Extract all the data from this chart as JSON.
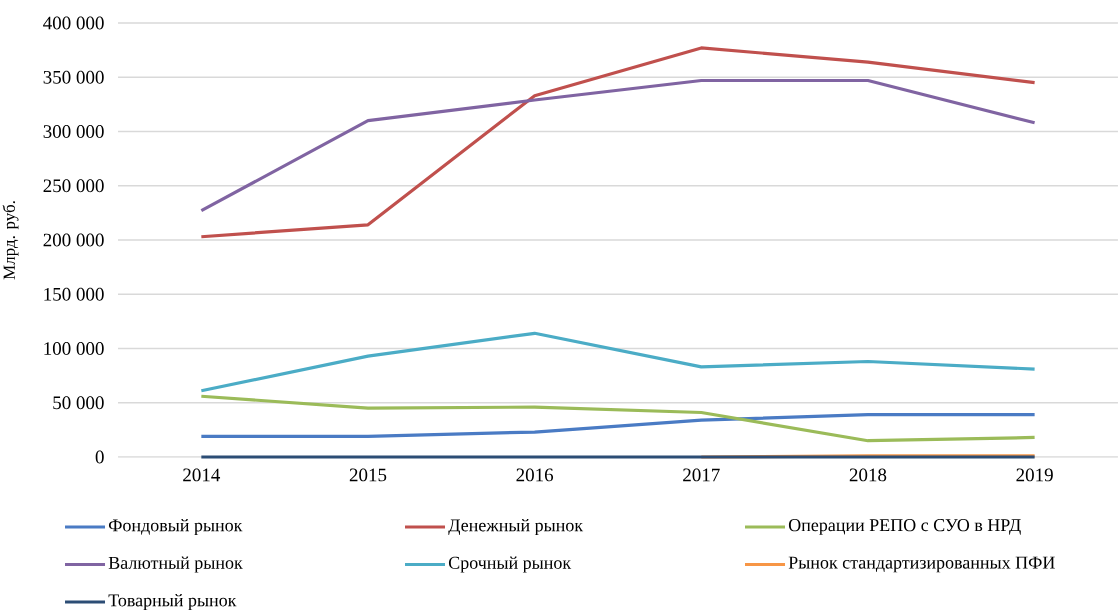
{
  "chart_data": {
    "type": "line",
    "ylabel": "Млрд. руб.",
    "categories": [
      "2014",
      "2015",
      "2016",
      "2017",
      "2018",
      "2019"
    ],
    "series": [
      {
        "name": "Фондовый рынок",
        "color": "#4a7bc4",
        "values": [
          19000,
          19000,
          23000,
          34000,
          39000,
          39000
        ]
      },
      {
        "name": "Денежный рынок",
        "color": "#c0504d",
        "values": [
          203000,
          214000,
          333000,
          377000,
          364000,
          345000
        ]
      },
      {
        "name": "Операции РЕПО с СУО в НРД",
        "color": "#9bbb59",
        "values": [
          56000,
          45000,
          46000,
          41000,
          15000,
          18000
        ]
      },
      {
        "name": "Валютный рынок",
        "color": "#8064a2",
        "values": [
          227000,
          310000,
          329000,
          347000,
          347000,
          308000
        ]
      },
      {
        "name": "Срочный рынок",
        "color": "#4bacc6",
        "values": [
          61000,
          93000,
          114000,
          83000,
          88000,
          81000
        ]
      },
      {
        "name": "Рынок стандартизированных ПФИ",
        "color": "#f79646",
        "values": [
          null,
          null,
          null,
          0,
          1000,
          1000
        ]
      },
      {
        "name": "Товарный рынок",
        "color": "#2c4d75",
        "values": [
          0,
          0,
          0,
          0,
          0,
          0
        ]
      }
    ],
    "ylim": [
      0,
      400000
    ],
    "yticks": [
      0,
      {
        "value": 50000,
        "label": "50 000"
      },
      {
        "value": 100000,
        "label": "100 000"
      },
      {
        "value": 150000,
        "label": "150 000"
      },
      {
        "value": 200000,
        "label": "200 000"
      },
      {
        "value": 250000,
        "label": "250 000"
      },
      {
        "value": 300000,
        "label": "300 000"
      },
      {
        "value": 350000,
        "label": "350 000"
      },
      {
        "value": 400000,
        "label": "400 000"
      }
    ],
    "grid": "y",
    "legend": "bottom",
    "line_style": "solid"
  }
}
